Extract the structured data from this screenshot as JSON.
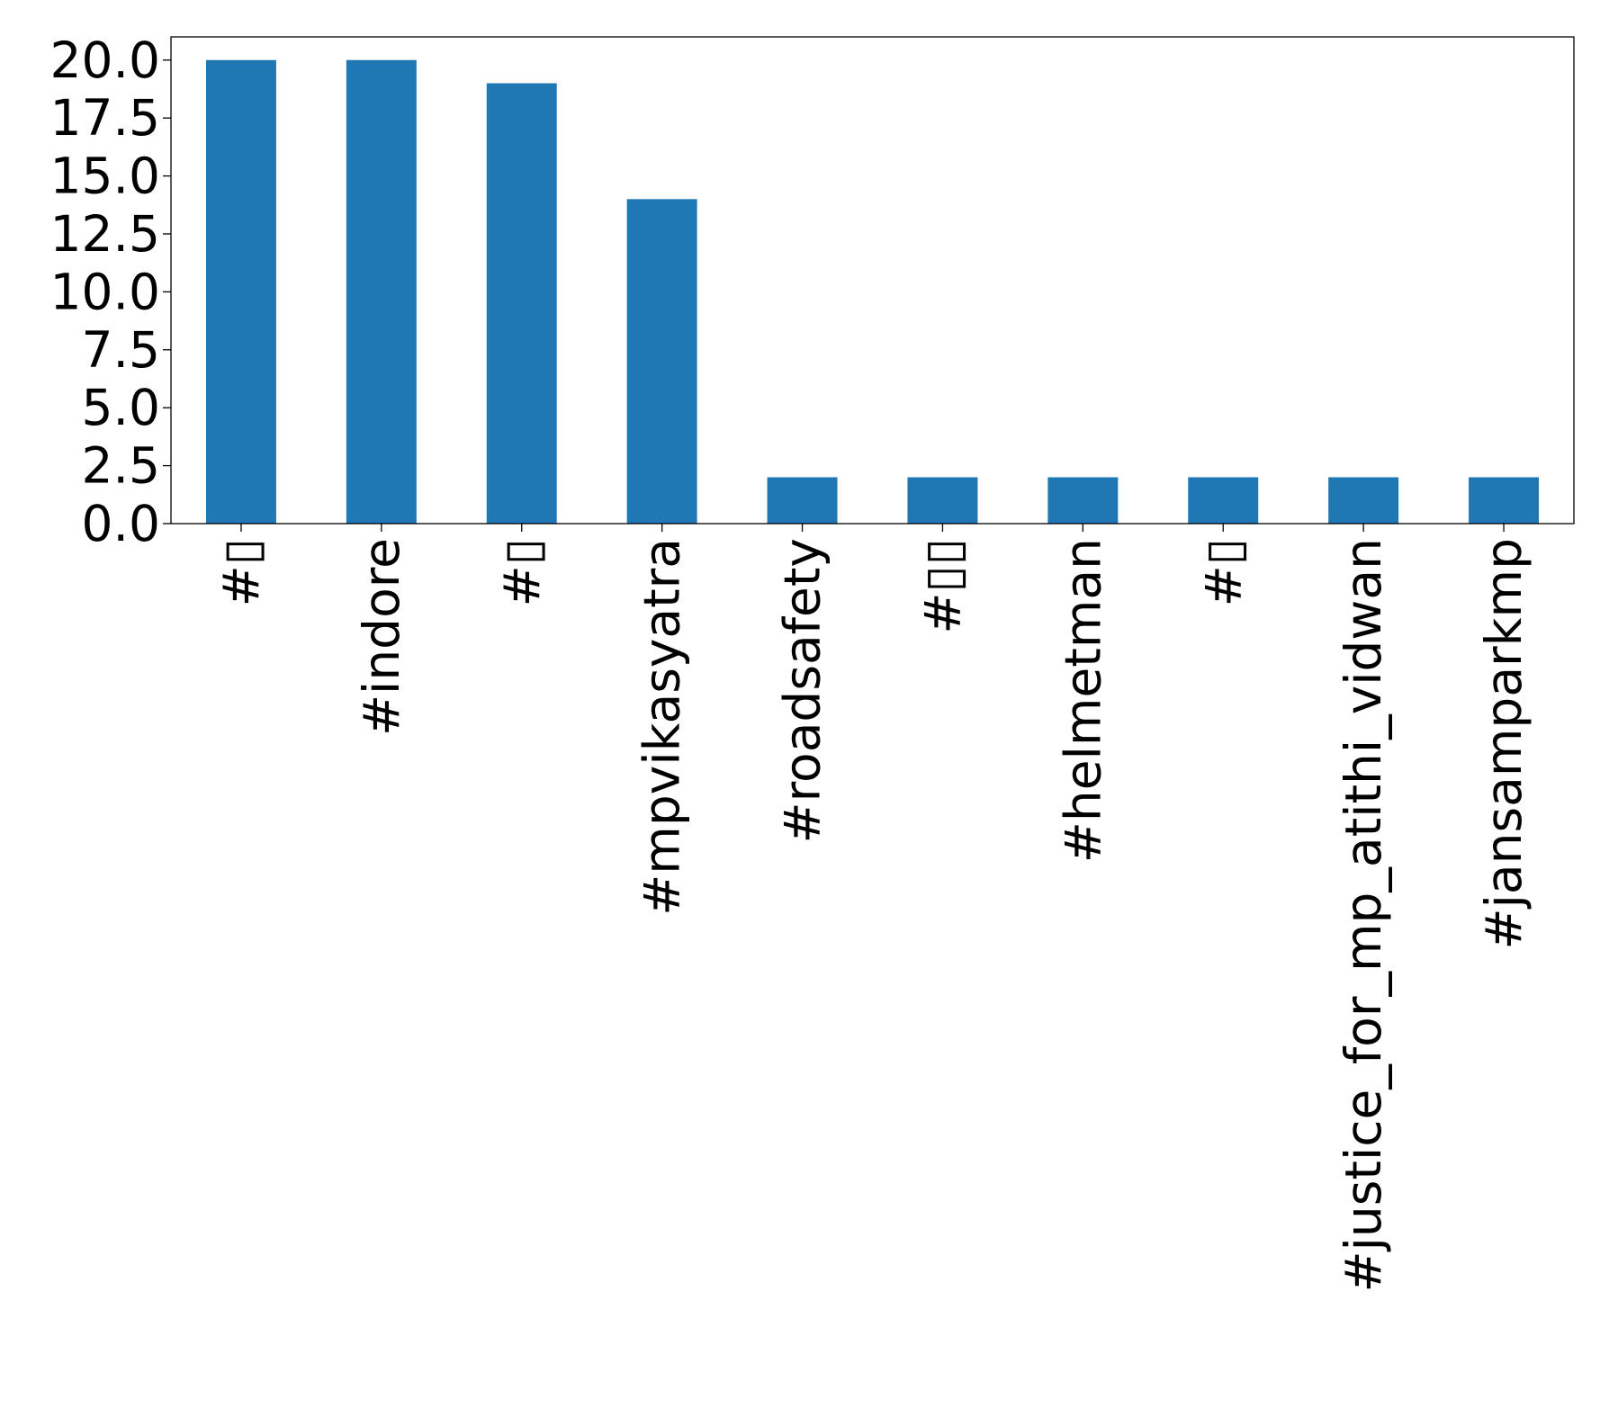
{
  "chart_data": {
    "type": "bar",
    "title": "",
    "xlabel": "",
    "ylabel": "",
    "categories": [
      "#▯",
      "#indore",
      "#▯",
      "#mpvikasyatra",
      "#roadsafety",
      "#▯▯",
      "#helmetman",
      "#▯",
      "#justice_for_mp_atithi_vidwan",
      "#jansamparkmp"
    ],
    "values": [
      20,
      20,
      19,
      14,
      2,
      2,
      2,
      2,
      2,
      2
    ],
    "ylim": [
      0,
      21
    ],
    "yticks": [
      "0.0",
      "2.5",
      "5.0",
      "7.5",
      "10.0",
      "12.5",
      "15.0",
      "17.5",
      "20.0"
    ],
    "bar_color": "#1f77b4",
    "grid": false,
    "legend": "none"
  }
}
